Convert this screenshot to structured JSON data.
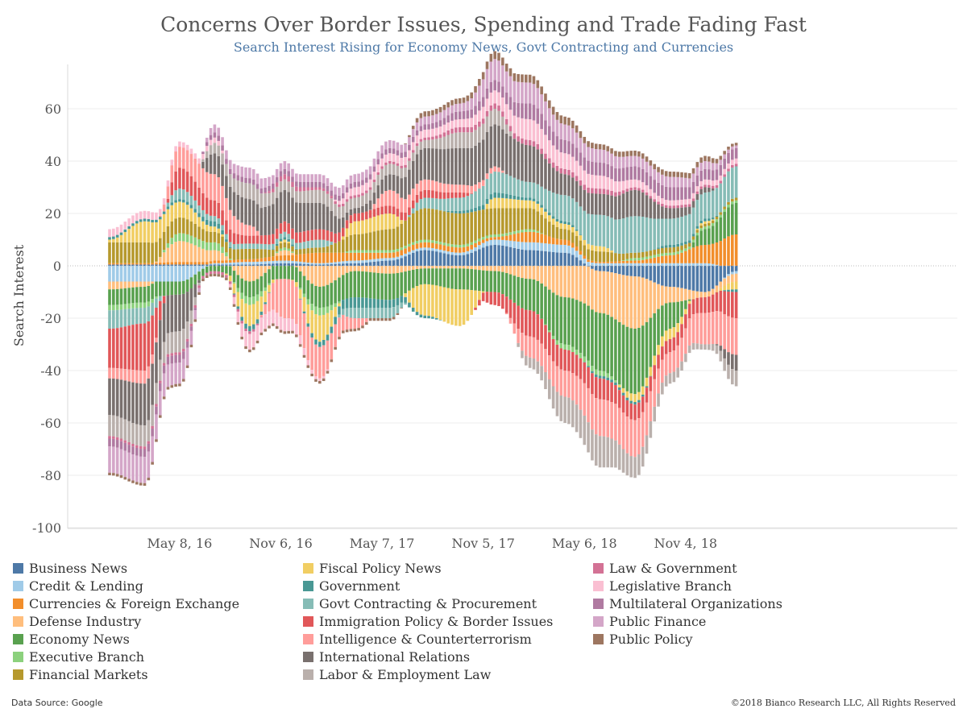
{
  "chart_data": {
    "type": "bar",
    "stacked": true,
    "title": "Concerns Over Border Issues, Spending and Trade Fading Fast",
    "subtitle": "Search Interest Rising for Economy News, Govt Contracting and Currencies",
    "ylabel": "Search Interest",
    "xlabel": "",
    "ylim": [
      -100,
      70
    ],
    "yticks": [
      60,
      40,
      20,
      0,
      -20,
      -40,
      -60,
      -80,
      -100
    ],
    "x_start": "2016-01-03",
    "x_interval": "week",
    "xticks": [
      {
        "label": "May 8, 16",
        "date": "2016-05-08"
      },
      {
        "label": "Nov 6, 16",
        "date": "2016-11-06"
      },
      {
        "label": "May 7, 17",
        "date": "2017-05-07"
      },
      {
        "label": "Nov 5, 17",
        "date": "2017-11-05"
      },
      {
        "label": "May 6, 18",
        "date": "2018-05-06"
      },
      {
        "label": "Nov 4, 18",
        "date": "2018-11-04"
      }
    ],
    "grid": true,
    "legend_position": "bottom",
    "anchors": [
      0,
      9,
      18,
      27,
      36,
      45,
      54,
      63,
      72,
      81,
      90,
      99,
      108,
      117,
      126,
      135,
      144,
      153,
      161
    ],
    "series": [
      {
        "name": "Business News",
        "color": "#4e79a7",
        "anchor_values": [
          0.5,
          0.5,
          0.5,
          0.5,
          0.5,
          1,
          0.5,
          1,
          2,
          6,
          4,
          8,
          6,
          5,
          -2,
          -4,
          -8,
          -10,
          -2
        ]
      },
      {
        "name": "Credit & Lending",
        "color": "#a0cbe8",
        "anchor_values": [
          -6,
          -6,
          -6,
          0.5,
          1,
          1,
          0.5,
          1,
          1,
          1,
          1,
          2,
          3,
          3,
          1,
          1,
          1,
          1,
          -1
        ]
      },
      {
        "name": "Currencies & Foreign Exchange",
        "color": "#f28e2b",
        "anchor_values": [
          0.5,
          0.5,
          1,
          1,
          1,
          2,
          4,
          3,
          2,
          2,
          2,
          1,
          4,
          2,
          0.5,
          1,
          3,
          7,
          12
        ]
      },
      {
        "name": "Defense Industry",
        "color": "#ffbe7d",
        "anchor_values": [
          -3,
          -2,
          8,
          4,
          -6,
          2,
          -8,
          -2,
          -3,
          -1,
          -1,
          -2,
          -5,
          -12,
          -16,
          -20,
          -6,
          -2,
          -3
        ]
      },
      {
        "name": "Economy News",
        "color": "#59a14f",
        "anchor_values": [
          -6,
          -6,
          -5,
          -2,
          -6,
          -5,
          -8,
          -10,
          -10,
          -6,
          -8,
          -8,
          -12,
          -18,
          -22,
          -25,
          -10,
          6,
          12
        ]
      },
      {
        "name": "Executive Branch",
        "color": "#8cd17d",
        "anchor_values": [
          -2,
          -2,
          3,
          3,
          -3,
          1,
          -3,
          1,
          1,
          1,
          1,
          1,
          1,
          -2,
          -2,
          1,
          1,
          1,
          1
        ]
      },
      {
        "name": "Financial Markets",
        "color": "#b6992d",
        "anchor_values": [
          8,
          8,
          6,
          4,
          4,
          2,
          2,
          6,
          8,
          12,
          12,
          10,
          8,
          4,
          4,
          2,
          2,
          1,
          1
        ]
      },
      {
        "name": "Fiscal Policy News",
        "color": "#f1ce63",
        "anchor_values": [
          1,
          8,
          6,
          2,
          -8,
          1,
          -10,
          5,
          6,
          -12,
          -14,
          4,
          3,
          2,
          2,
          -3,
          -4,
          1,
          -3
        ]
      },
      {
        "name": "Government",
        "color": "#499894",
        "anchor_values": [
          1,
          1,
          1,
          2,
          -2,
          1,
          -2,
          -4,
          -3,
          -1,
          1,
          2,
          1,
          1,
          -1,
          -1,
          1,
          1,
          -1
        ]
      },
      {
        "name": "Govt Contracting & Procurement",
        "color": "#86bcb6",
        "anchor_values": [
          -7,
          -6,
          4,
          2,
          2,
          2,
          3,
          -4,
          -4,
          4,
          5,
          8,
          6,
          10,
          12,
          14,
          10,
          10,
          12
        ]
      },
      {
        "name": "Immigration Policy & Border Issues",
        "color": "#e15759",
        "anchor_values": [
          -15,
          -18,
          8,
          6,
          3,
          4,
          4,
          3,
          3,
          3,
          2,
          -5,
          -10,
          -8,
          -8,
          -6,
          -5,
          -6,
          -10
        ]
      },
      {
        "name": "Intelligence & Counterterrorism",
        "color": "#ff9d9a",
        "anchor_values": [
          -4,
          -5,
          8,
          10,
          4,
          -15,
          -12,
          -4,
          6,
          4,
          3,
          2,
          -8,
          -10,
          -14,
          -14,
          -8,
          -12,
          -14
        ]
      },
      {
        "name": "International Relations",
        "color": "#79706e",
        "anchor_values": [
          -14,
          -16,
          -14,
          8,
          10,
          12,
          10,
          2,
          6,
          12,
          14,
          16,
          14,
          8,
          8,
          10,
          4,
          2,
          -6
        ]
      },
      {
        "name": "Labor & Employment Law",
        "color": "#bab0ac",
        "anchor_values": [
          -8,
          -8,
          -8,
          4,
          6,
          4,
          5,
          4,
          4,
          3,
          6,
          6,
          -4,
          -10,
          -12,
          -8,
          -4,
          -2,
          -6
        ]
      },
      {
        "name": "Law & Government",
        "color": "#d37295",
        "anchor_values": [
          -1,
          -1,
          -1,
          -1,
          -1,
          2,
          1,
          1,
          1,
          1,
          2,
          2,
          2,
          2,
          2,
          1,
          1,
          1,
          1
        ]
      },
      {
        "name": "Legislative Branch",
        "color": "#fabfd2",
        "anchor_values": [
          3,
          3,
          2,
          2,
          -6,
          -5,
          -1,
          3,
          3,
          3,
          3,
          5,
          8,
          6,
          5,
          3,
          2,
          2,
          2
        ]
      },
      {
        "name": "Multilateral Organizations",
        "color": "#b07aa1",
        "anchor_values": [
          -3,
          -3,
          -3,
          2,
          2,
          2,
          2,
          2,
          2,
          2,
          3,
          4,
          6,
          5,
          5,
          5,
          5,
          4,
          4
        ]
      },
      {
        "name": "Public Finance",
        "color": "#d4a6c8",
        "anchor_values": [
          -10,
          -10,
          -8,
          3,
          4,
          3,
          3,
          3,
          3,
          3,
          3,
          8,
          8,
          6,
          5,
          4,
          4,
          3,
          1
        ]
      },
      {
        "name": "Public Policy",
        "color": "#9d7660",
        "anchor_values": [
          -1,
          -1,
          -1,
          -1,
          -1,
          -1,
          -1,
          -1,
          -1,
          2,
          2,
          3,
          3,
          3,
          2,
          2,
          2,
          2,
          1
        ]
      }
    ]
  },
  "footer": {
    "source": "Data Source: Google",
    "copyright": "©2018 Bianco Research LLC, All Rights Reserved"
  }
}
